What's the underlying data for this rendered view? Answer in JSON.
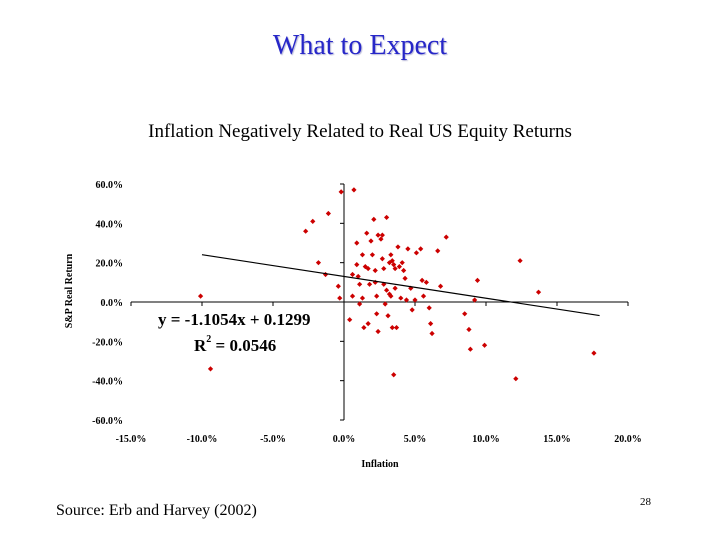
{
  "slide": {
    "title": "What to Expect",
    "source": "Source: Erb and Harvey (2002)",
    "page_number": "28"
  },
  "chart_data": {
    "type": "scatter",
    "title": "Inflation Negatively Related to Real US Equity Returns",
    "xlabel": "Inflation",
    "ylabel": "S&P Real Return",
    "xlim": [
      -0.15,
      0.2
    ],
    "ylim": [
      -0.6,
      0.6
    ],
    "x_ticks": [
      -0.15,
      -0.1,
      -0.05,
      0.0,
      0.05,
      0.1,
      0.15,
      0.2
    ],
    "x_tick_labels": [
      "-15.0%",
      "-10.0%",
      "-5.0%",
      "0.0%",
      "5.0%",
      "10.0%",
      "15.0%",
      "20.0%"
    ],
    "y_ticks": [
      0.6,
      0.4,
      0.2,
      0.0,
      -0.2,
      -0.4,
      -0.6
    ],
    "y_tick_labels": [
      "60.0%",
      "40.0%",
      "20.0%",
      "0.0%",
      "-20.0%",
      "-40.0%",
      "-60.0%"
    ],
    "grid": false,
    "marker_color": "#cc0000",
    "trendline": {
      "slope": -1.1054,
      "intercept": 0.1299,
      "x_range": [
        -0.1,
        0.18
      ]
    },
    "annotations": {
      "equation": "y = -1.1054x + 0.1299",
      "r2_prefix": "R",
      "r2_sup": "2",
      "r2_value": " = 0.0546"
    },
    "series": [
      {
        "points": [
          [
            -0.101,
            0.03
          ],
          [
            -0.094,
            -0.34
          ],
          [
            -0.027,
            0.36
          ],
          [
            -0.022,
            0.41
          ],
          [
            -0.018,
            0.2
          ],
          [
            -0.013,
            0.14
          ],
          [
            -0.011,
            0.45
          ],
          [
            -0.004,
            0.08
          ],
          [
            -0.003,
            0.02
          ],
          [
            -0.002,
            0.56
          ],
          [
            0.006,
            0.14
          ],
          [
            0.006,
            0.03
          ],
          [
            0.004,
            -0.09
          ],
          [
            0.007,
            0.57
          ],
          [
            0.009,
            0.3
          ],
          [
            0.009,
            0.19
          ],
          [
            0.01,
            0.13
          ],
          [
            0.011,
            0.09
          ],
          [
            0.011,
            -0.01
          ],
          [
            0.013,
            0.24
          ],
          [
            0.013,
            0.02
          ],
          [
            0.014,
            -0.13
          ],
          [
            0.015,
            0.18
          ],
          [
            0.016,
            0.35
          ],
          [
            0.017,
            0.17
          ],
          [
            0.018,
            0.09
          ],
          [
            0.017,
            -0.11
          ],
          [
            0.019,
            0.31
          ],
          [
            0.02,
            0.24
          ],
          [
            0.021,
            0.42
          ],
          [
            0.022,
            0.16
          ],
          [
            0.022,
            0.1
          ],
          [
            0.023,
            0.03
          ],
          [
            0.023,
            -0.06
          ],
          [
            0.024,
            -0.15
          ],
          [
            0.024,
            0.34
          ],
          [
            0.026,
            0.32
          ],
          [
            0.027,
            0.34
          ],
          [
            0.027,
            0.22
          ],
          [
            0.028,
            0.17
          ],
          [
            0.028,
            0.09
          ],
          [
            0.029,
            -0.01
          ],
          [
            0.03,
            0.43
          ],
          [
            0.03,
            0.06
          ],
          [
            0.031,
            -0.07
          ],
          [
            0.032,
            0.2
          ],
          [
            0.032,
            0.04
          ],
          [
            0.033,
            0.03
          ],
          [
            0.033,
            0.24
          ],
          [
            0.034,
            0.21
          ],
          [
            0.034,
            -0.13
          ],
          [
            0.035,
            0.19
          ],
          [
            0.035,
            -0.37
          ],
          [
            0.036,
            0.17
          ],
          [
            0.036,
            0.07
          ],
          [
            0.037,
            -0.13
          ],
          [
            0.038,
            0.28
          ],
          [
            0.039,
            0.18
          ],
          [
            0.04,
            0.02
          ],
          [
            0.041,
            0.2
          ],
          [
            0.042,
            0.16
          ],
          [
            0.043,
            0.12
          ],
          [
            0.044,
            0.01
          ],
          [
            0.045,
            0.27
          ],
          [
            0.047,
            0.07
          ],
          [
            0.048,
            -0.04
          ],
          [
            0.05,
            0.01
          ],
          [
            0.051,
            0.25
          ],
          [
            0.054,
            0.27
          ],
          [
            0.055,
            0.11
          ],
          [
            0.056,
            0.03
          ],
          [
            0.058,
            0.1
          ],
          [
            0.06,
            -0.03
          ],
          [
            0.061,
            -0.11
          ],
          [
            0.062,
            -0.16
          ],
          [
            0.066,
            0.26
          ],
          [
            0.068,
            0.08
          ],
          [
            0.072,
            0.33
          ],
          [
            0.085,
            -0.06
          ],
          [
            0.088,
            -0.14
          ],
          [
            0.089,
            -0.24
          ],
          [
            0.092,
            0.01
          ],
          [
            0.094,
            0.11
          ],
          [
            0.099,
            -0.22
          ],
          [
            0.121,
            -0.39
          ],
          [
            0.124,
            0.21
          ],
          [
            0.137,
            0.05
          ],
          [
            0.176,
            -0.26
          ]
        ]
      }
    ]
  }
}
